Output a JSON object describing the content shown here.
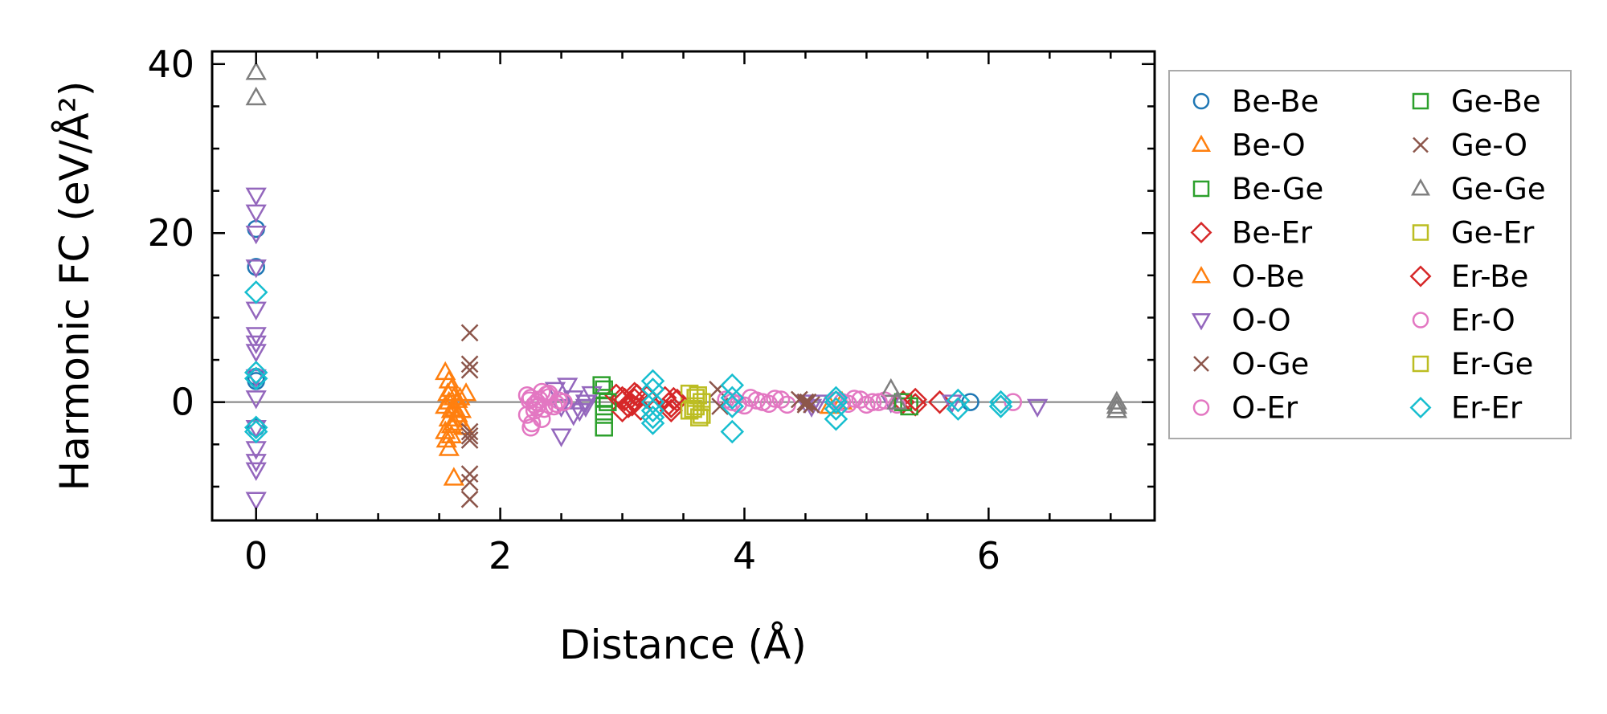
{
  "chart_data": {
    "type": "scatter",
    "title": "",
    "xlabel": "Distance (Å)",
    "ylabel": "Harmonic FC (eV/Å²)",
    "xlim": [
      -0.36,
      7.36
    ],
    "ylim": [
      -14,
      41.5
    ],
    "xticks": [
      0,
      2,
      4,
      6
    ],
    "yticks": [
      0,
      20,
      40
    ],
    "x_tick_labels": [
      "0",
      "2",
      "4",
      "6"
    ],
    "y_tick_labels": [
      "0",
      "20",
      "40"
    ],
    "zero_line": true,
    "grid": false,
    "legend_position": "outside-right",
    "legend_columns": 2,
    "series": [
      {
        "name": "Be-Be",
        "marker": "circle",
        "color": "#1f77b4",
        "x": [
          0,
          0,
          0,
          0,
          0,
          5.85
        ],
        "y": [
          20.5,
          16,
          3,
          2.5,
          -3,
          0
        ]
      },
      {
        "name": "Be-O",
        "marker": "triangle-up",
        "color": "#ff7f0e",
        "x": [
          1.55,
          1.58,
          1.6,
          1.62,
          1.55,
          1.6,
          1.65,
          1.58,
          1.62,
          1.7,
          1.55,
          1.6,
          1.65,
          1.58,
          1.62,
          1.58,
          1.72,
          1.68
        ],
        "y": [
          3.5,
          2.5,
          1.5,
          0.5,
          -0.5,
          -1,
          -1.5,
          -2,
          -2.5,
          -3,
          -3.5,
          -4,
          -2,
          -5.5,
          -9,
          0,
          1,
          -1
        ]
      },
      {
        "name": "Be-Ge",
        "marker": "square",
        "color": "#2ca02c",
        "x": [
          2.85,
          2.85,
          2.85,
          2.85,
          2.85
        ],
        "y": [
          1.5,
          0.5,
          -0.5,
          -1.5,
          -3
        ]
      },
      {
        "name": "Be-Er",
        "marker": "diamond",
        "color": "#d62728",
        "x": [
          2.95,
          3.0,
          3.05,
          3.1,
          3.15,
          3.2,
          3.35,
          3.4,
          3.45,
          3.0,
          3.1,
          3.4,
          5.3,
          5.4,
          5.6
        ],
        "y": [
          0.8,
          0.5,
          -0.5,
          0.3,
          -0.8,
          0.6,
          0.5,
          -0.5,
          0.2,
          -1,
          1,
          -1,
          0,
          -0.3,
          0
        ]
      },
      {
        "name": "O-Be",
        "marker": "triangle-up",
        "color": "#ff7f0e",
        "x": [
          1.57,
          1.63,
          1.67,
          1.6,
          1.65,
          1.56,
          4.7,
          4.8
        ],
        "y": [
          1.0,
          -0.8,
          0.5,
          -2.8,
          0.2,
          -4.5,
          -0.5,
          0
        ]
      },
      {
        "name": "O-O",
        "marker": "triangle-down",
        "color": "#9467bd",
        "x": [
          0,
          0,
          0,
          0,
          0,
          0,
          0,
          0,
          0,
          0,
          0,
          0,
          0,
          0,
          0,
          2.45,
          2.5,
          2.55,
          2.6,
          2.65,
          2.7,
          2.75,
          2.5,
          2.6,
          2.7,
          4.5,
          4.55,
          4.6,
          5.2,
          5.7,
          6.4
        ],
        "y": [
          24.5,
          22.5,
          20,
          16,
          11,
          8,
          7,
          6,
          3,
          0.5,
          -3,
          -5.5,
          -7,
          -8,
          -11.5,
          1.5,
          -0.5,
          2,
          0.5,
          -1,
          0,
          1,
          -4,
          -1.5,
          -0.5,
          0,
          -0.5,
          0,
          0,
          0,
          -0.5
        ]
      },
      {
        "name": "O-Ge",
        "marker": "x",
        "color": "#8c564b",
        "x": [
          1.75,
          1.75,
          1.75,
          1.75,
          1.75,
          1.75,
          1.75,
          1.75,
          1.75,
          3.78,
          4.5,
          4.55
        ],
        "y": [
          8.2,
          4.5,
          3.8,
          -3.5,
          -4.5,
          -8.5,
          -9.5,
          -11.5,
          -4,
          1.5,
          0,
          -0.3
        ]
      },
      {
        "name": "O-Er",
        "marker": "circle",
        "color": "#e377c2",
        "x": [
          2.22,
          2.25,
          2.28,
          2.32,
          2.36,
          2.4,
          2.44,
          2.48,
          2.52,
          2.22,
          2.28,
          2.34,
          2.4,
          2.25,
          2.3,
          3.85,
          3.95,
          4.05,
          4.15,
          4.25,
          4.35,
          4.75,
          4.85,
          4.95,
          5.05,
          5.15,
          5.25,
          6.2
        ],
        "y": [
          0.8,
          0.5,
          -0.3,
          0.3,
          -0.8,
          0.6,
          -0.5,
          0.2,
          0,
          -1.5,
          -1,
          -2,
          1,
          -3,
          0,
          0.3,
          -0.2,
          0.5,
          0,
          0.4,
          -0.3,
          0.2,
          -0.2,
          0.3,
          0,
          0.2,
          -0.3,
          0
        ]
      },
      {
        "name": "Ge-Be",
        "marker": "square",
        "color": "#2ca02c",
        "x": [
          2.83,
          2.88,
          5.35,
          5.3
        ],
        "y": [
          2,
          0,
          -0.5,
          0
        ]
      },
      {
        "name": "Ge-O",
        "marker": "x",
        "color": "#8c564b",
        "x": [
          3.8,
          4.45,
          4.5,
          4.52
        ],
        "y": [
          -0.5,
          0.3,
          -0.3,
          0
        ]
      },
      {
        "name": "Ge-Ge",
        "marker": "triangle-up",
        "color": "#7f7f7f",
        "x": [
          0,
          0,
          5.2,
          5.25,
          7.05,
          7.05,
          7.05
        ],
        "y": [
          39,
          36,
          1.5,
          0,
          0,
          -0.5,
          -1
        ]
      },
      {
        "name": "Ge-Er",
        "marker": "square",
        "color": "#bcbd22",
        "x": [
          3.55,
          3.6,
          3.65,
          3.6,
          3.55,
          3.65
        ],
        "y": [
          1,
          0.5,
          0,
          -0.5,
          -1,
          -1.5
        ]
      },
      {
        "name": "Er-Be",
        "marker": "diamond",
        "color": "#d62728",
        "x": [
          3.02,
          3.08,
          3.12,
          3.38,
          3.42,
          5.4
        ],
        "y": [
          0.3,
          -0.3,
          0.8,
          -0.2,
          0.4,
          0.3
        ]
      },
      {
        "name": "Er-O",
        "marker": "circle",
        "color": "#e377c2",
        "x": [
          2.24,
          2.3,
          2.38,
          2.46,
          2.26,
          2.34,
          3.9,
          4.0,
          4.1,
          4.2,
          4.3,
          4.8,
          4.9,
          5.0,
          5.1
        ],
        "y": [
          0.2,
          -0.6,
          0.9,
          -0.2,
          -2.5,
          1.2,
          0,
          -0.4,
          0.2,
          -0.2,
          0.3,
          0,
          0.4,
          -0.3,
          0
        ]
      },
      {
        "name": "Er-Ge",
        "marker": "square",
        "color": "#bcbd22",
        "x": [
          3.58,
          3.62,
          3.63
        ],
        "y": [
          -0.8,
          0.8,
          -1.8
        ]
      },
      {
        "name": "Er-Er",
        "marker": "diamond",
        "color": "#17becf",
        "x": [
          0,
          0,
          0,
          0,
          0,
          3.25,
          3.25,
          3.25,
          3.25,
          3.25,
          3.25,
          3.9,
          3.9,
          3.9,
          3.9,
          4.75,
          4.75,
          4.75,
          4.75,
          5.75,
          5.75,
          6.1,
          6.1
        ],
        "y": [
          13,
          3.5,
          2.8,
          -3,
          -3.5,
          2.5,
          1.5,
          0,
          -1,
          -2.5,
          -1.8,
          2,
          0.5,
          -0.5,
          -3.5,
          0.5,
          0,
          -0.8,
          -2,
          0.2,
          -0.8,
          0,
          -0.5
        ]
      }
    ]
  }
}
